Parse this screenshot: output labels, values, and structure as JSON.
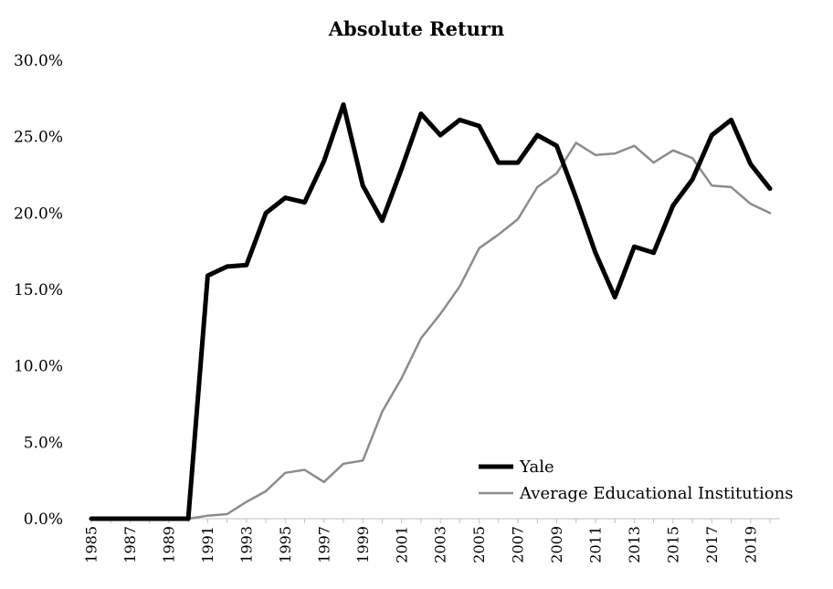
{
  "chart_data": {
    "type": "line",
    "title": "Absolute Return",
    "xlabel": "",
    "ylabel": "",
    "ylim": [
      0,
      30
    ],
    "y_ticks": [
      {
        "value": 0,
        "label": "0.0%"
      },
      {
        "value": 5,
        "label": "5.0%"
      },
      {
        "value": 10,
        "label": "10.0%"
      },
      {
        "value": 15,
        "label": "15.0%"
      },
      {
        "value": 20,
        "label": "20.0%"
      },
      {
        "value": 25,
        "label": "25.0%"
      },
      {
        "value": 30,
        "label": "30.0%"
      }
    ],
    "x_tick_labels": [
      "1985",
      "1987",
      "1989",
      "1991",
      "1993",
      "1995",
      "1997",
      "1999",
      "2001",
      "2003",
      "2005",
      "2007",
      "2009",
      "2011",
      "2013",
      "2015",
      "2017",
      "2019"
    ],
    "x": [
      1985,
      1986,
      1987,
      1988,
      1989,
      1990,
      1991,
      1992,
      1993,
      1994,
      1995,
      1996,
      1997,
      1998,
      1999,
      2000,
      2001,
      2002,
      2003,
      2004,
      2005,
      2006,
      2007,
      2008,
      2009,
      2010,
      2011,
      2012,
      2013,
      2014,
      2015,
      2016,
      2017,
      2018,
      2019,
      2020
    ],
    "grid": false,
    "legend_position": "bottom-right",
    "series": [
      {
        "name": "Yale",
        "color": "#000000",
        "values": [
          0.0,
          0.0,
          0.0,
          0.0,
          0.0,
          0.0,
          15.9,
          16.5,
          16.6,
          20.0,
          21.0,
          20.7,
          23.4,
          27.1,
          21.8,
          19.5,
          22.9,
          26.5,
          25.1,
          26.1,
          25.7,
          23.3,
          23.3,
          25.1,
          24.4,
          21.0,
          17.4,
          14.5,
          17.8,
          17.4,
          20.5,
          22.2,
          25.1,
          26.1,
          23.2,
          21.6
        ]
      },
      {
        "name": "Average Educational Institutions",
        "color": "#8c8c8c",
        "values": [
          0.0,
          0.0,
          0.0,
          0.0,
          0.0,
          0.0,
          0.2,
          0.3,
          1.1,
          1.8,
          3.0,
          3.2,
          2.4,
          3.6,
          3.8,
          7.0,
          9.2,
          11.8,
          13.4,
          15.2,
          17.7,
          18.6,
          19.6,
          21.7,
          22.6,
          24.6,
          23.8,
          23.9,
          24.4,
          23.3,
          24.1,
          23.6,
          21.8,
          21.7,
          20.6,
          20.0
        ]
      }
    ]
  }
}
